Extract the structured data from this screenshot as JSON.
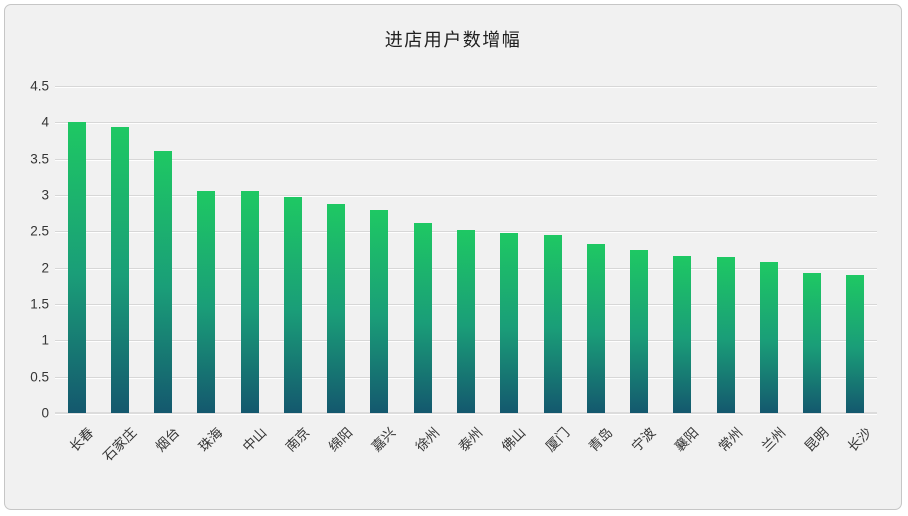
{
  "page": {
    "background": "#ffffff",
    "card_background": "#f1f1f1",
    "card_border_color": "#c6c6c6"
  },
  "chart_data": {
    "type": "bar",
    "title": "进店用户数增幅",
    "categories": [
      "长春",
      "石家庄",
      "烟台",
      "珠海",
      "中山",
      "南京",
      "绵阳",
      "嘉兴",
      "徐州",
      "泰州",
      "佛山",
      "厦门",
      "青岛",
      "宁波",
      "襄阳",
      "常州",
      "兰州",
      "昆明",
      "长沙"
    ],
    "values": [
      4.01,
      3.94,
      3.61,
      3.06,
      3.05,
      2.97,
      2.88,
      2.79,
      2.61,
      2.52,
      2.48,
      2.45,
      2.32,
      2.25,
      2.16,
      2.15,
      2.08,
      1.92,
      1.9
    ],
    "xlabel": "",
    "ylabel": "",
    "ylim": [
      0,
      4.5
    ],
    "ytick_step": 0.5,
    "ytick_labels": [
      "0",
      "0.5",
      "1",
      "1.5",
      "2",
      "2.5",
      "3",
      "3.5",
      "4",
      "4.5"
    ],
    "grid": "horizontal",
    "legend": "none",
    "x_label_rotation_deg": 45,
    "colors": {
      "bar_gradient_top": "#1ec863",
      "bar_gradient_mid": "#1a9e78",
      "bar_gradient_bottom": "#14586e",
      "gridline": "#d7d7d7",
      "axis_labels": "#353535",
      "title": "#1f1f1f"
    }
  }
}
